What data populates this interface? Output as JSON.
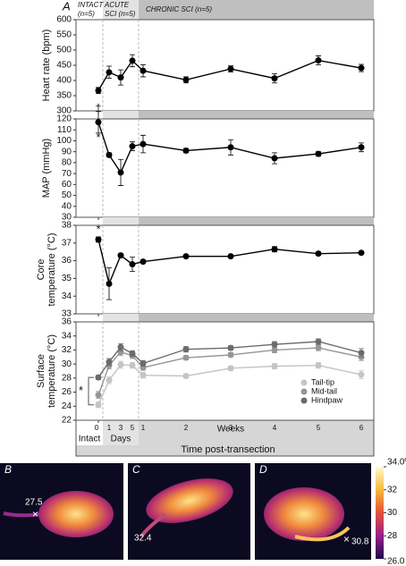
{
  "header": {
    "panel_label": "A",
    "regions": [
      [
        "INTACT",
        "(n=5)"
      ],
      [
        "ACUTE",
        "SCI (n=5)"
      ],
      [
        "CHRONIC SCI (n=5)"
      ]
    ]
  },
  "chart_data": [
    {
      "type": "line",
      "ylabel": [
        "Heart rate (bpm)"
      ],
      "ylim": [
        300,
        600
      ],
      "yticks": [
        300,
        350,
        400,
        450,
        500,
        550,
        600
      ],
      "annotation": "†",
      "series": [
        {
          "color": "#000000",
          "values": [
            367,
            427,
            410,
            465,
            432,
            402,
            438,
            407,
            466,
            441
          ],
          "errors": [
            10,
            20,
            25,
            20,
            20,
            10,
            10,
            15,
            15,
            12
          ]
        }
      ]
    },
    {
      "type": "line",
      "ylabel": [
        "MAP (mmHg)"
      ],
      "ylim": [
        30,
        120
      ],
      "yticks": [
        30,
        40,
        50,
        60,
        70,
        80,
        90,
        100,
        110,
        120
      ],
      "annotation": "*",
      "series": [
        {
          "color": "#000000",
          "values": [
            117,
            87,
            71,
            95,
            97,
            91,
            94,
            84,
            88,
            94
          ],
          "errors": [
            10,
            2,
            12,
            4,
            8,
            2,
            7,
            5,
            2,
            4
          ]
        }
      ]
    },
    {
      "type": "line",
      "ylabel": [
        "Core",
        "temperature (°C)"
      ],
      "ylim": [
        33,
        38
      ],
      "yticks": [
        33,
        34,
        35,
        36,
        37,
        38
      ],
      "annotation": "*",
      "series": [
        {
          "color": "#000000",
          "values": [
            37.2,
            34.7,
            36.3,
            35.8,
            35.95,
            36.25,
            36.25,
            36.65,
            36.4,
            36.45
          ],
          "errors": [
            0.15,
            0.9,
            0.1,
            0.4,
            0.05,
            0.05,
            0.05,
            0.15,
            0.1,
            0.05
          ]
        }
      ]
    },
    {
      "type": "line",
      "ylabel": [
        "Surface",
        "temperature (°C)"
      ],
      "ylim": [
        22,
        36
      ],
      "yticks": [
        22,
        24,
        26,
        28,
        30,
        32,
        34,
        36
      ],
      "annotation": "*",
      "legend": "lower right",
      "categories": [
        "0",
        "1",
        "3",
        "5",
        "1",
        "2",
        "3",
        "4",
        "5",
        "6"
      ],
      "x_groups": [
        "Intact",
        "Days",
        "Weeks"
      ],
      "xlabel": "Time post-transection",
      "series": [
        {
          "name": "Tail-tip",
          "color": "#c4c4c4",
          "values": [
            24.2,
            27.7,
            29.9,
            29.8,
            28.4,
            28.3,
            29.4,
            29.7,
            29.8,
            28.5
          ],
          "errors": [
            0.4,
            0.5,
            0.5,
            0.4,
            0.4,
            0.3,
            0.3,
            0.4,
            0.4,
            0.6
          ]
        },
        {
          "name": "Mid-tail",
          "color": "#969696",
          "values": [
            25.6,
            29.8,
            31.7,
            31.2,
            29.5,
            30.9,
            31.3,
            32.0,
            32.3,
            31.0
          ],
          "errors": [
            0.5,
            0.5,
            0.5,
            0.4,
            0.4,
            0.3,
            0.3,
            0.4,
            0.4,
            0.5
          ]
        },
        {
          "name": "Hindpaw",
          "color": "#6b6b6b",
          "values": [
            28.1,
            30.3,
            32.4,
            31.5,
            30.1,
            32.1,
            32.3,
            32.8,
            33.2,
            31.6
          ],
          "errors": [
            0.3,
            0.5,
            0.5,
            0.4,
            0.4,
            0.4,
            0.3,
            0.4,
            0.4,
            0.6
          ]
        }
      ]
    }
  ],
  "thermal_panels": [
    {
      "label": "B",
      "reading": 27.5
    },
    {
      "label": "C",
      "reading": 32.4
    },
    {
      "label": "D",
      "reading": 30.8
    }
  ],
  "colorbar": {
    "range": [
      26,
      34
    ],
    "ticks": [
      {
        "value": 34,
        "label": "34.0ºC"
      },
      32,
      30,
      28,
      {
        "value": 26,
        "label": "26.0"
      }
    ]
  }
}
